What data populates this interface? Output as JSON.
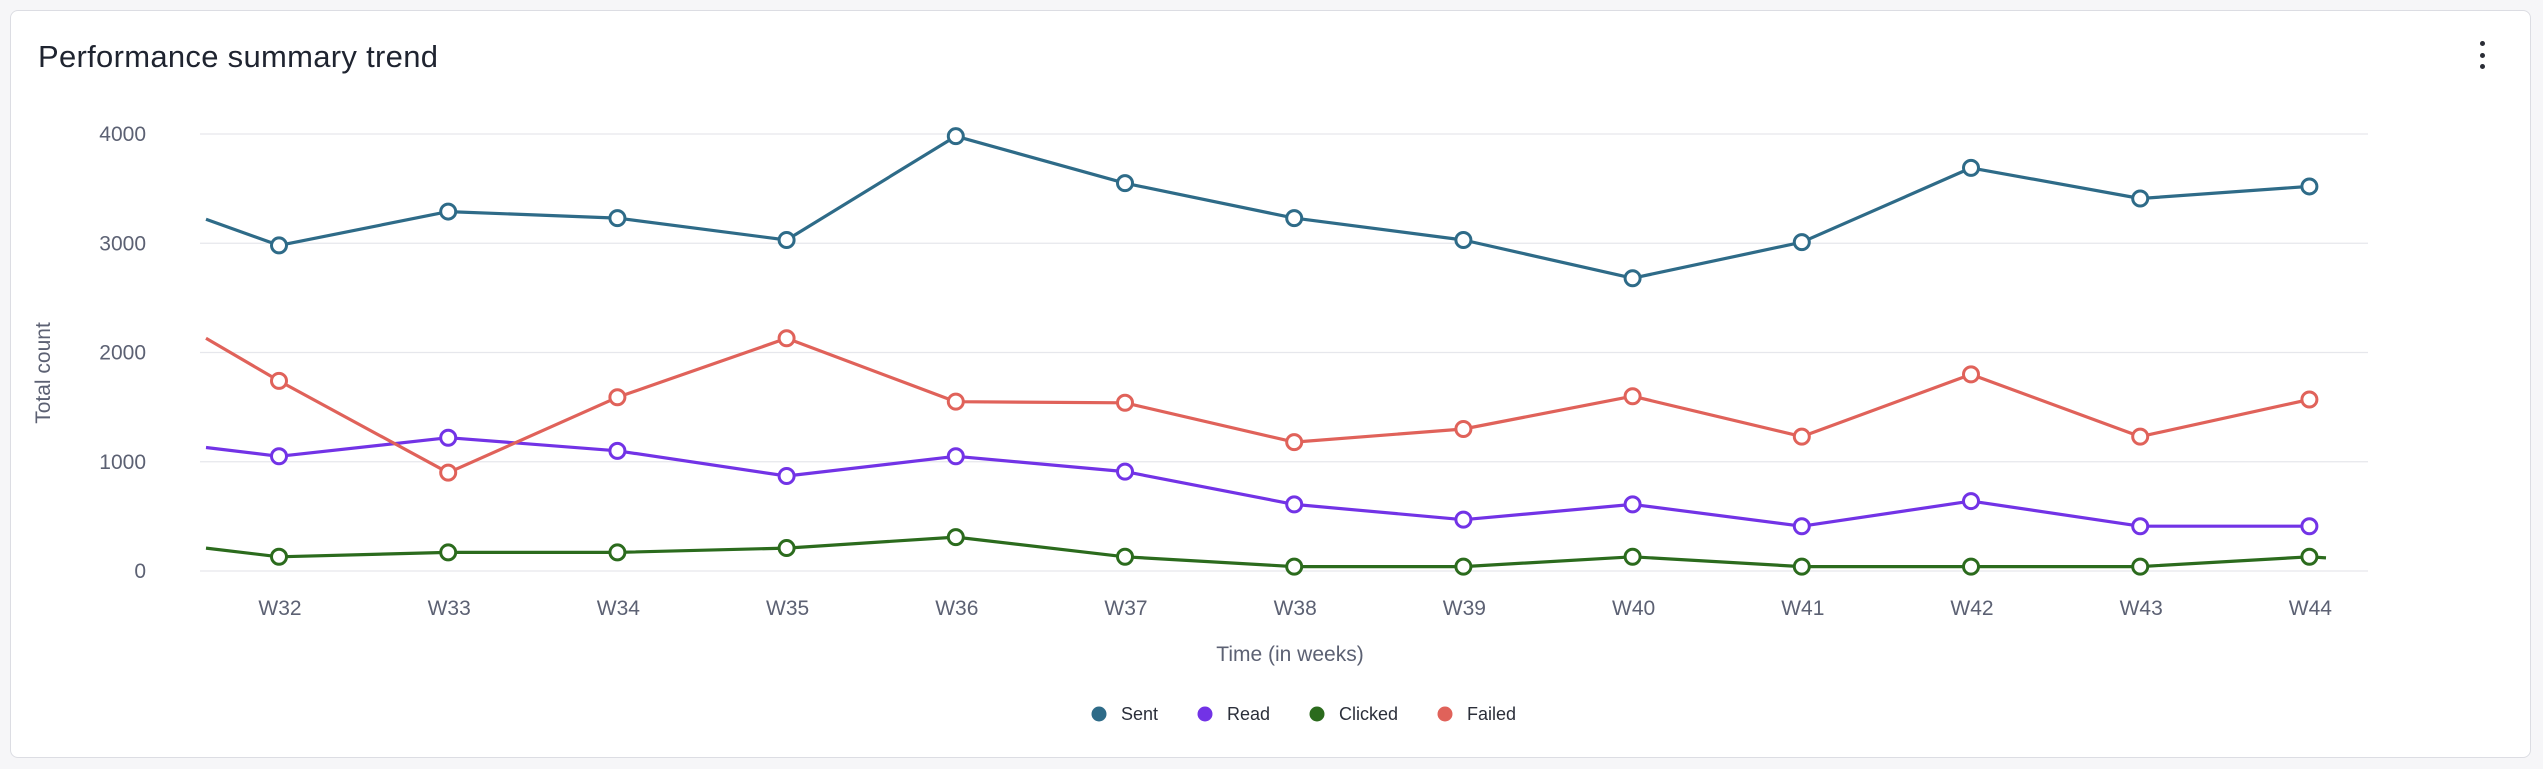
{
  "card": {
    "title": "Performance summary trend",
    "menu_icon": "more-vertical-icon"
  },
  "chart_data": {
    "type": "line",
    "title": "Performance summary trend",
    "xlabel": "Time (in weeks)",
    "ylabel": "Total count",
    "ylim": [
      0,
      4000
    ],
    "yticks": [
      0,
      1000,
      2000,
      3000,
      4000
    ],
    "grid": true,
    "legend_position": "bottom-center",
    "categories": [
      "W32",
      "W33",
      "W34",
      "W35",
      "W36",
      "W37",
      "W38",
      "W39",
      "W40",
      "W41",
      "W42",
      "W43",
      "W44"
    ],
    "series": [
      {
        "name": "Sent",
        "color": "#2e6b88",
        "start": 3220,
        "values": [
          2980,
          3290,
          3230,
          3030,
          3980,
          3550,
          3230,
          3030,
          2680,
          3010,
          3690,
          3410,
          3520
        ]
      },
      {
        "name": "Read",
        "color": "#7233e6",
        "start": 1130,
        "values": [
          1050,
          1220,
          1100,
          870,
          1050,
          910,
          610,
          470,
          610,
          410,
          640,
          410,
          410
        ]
      },
      {
        "name": "Clicked",
        "color": "#2b6b1d",
        "start": 210,
        "end": 120,
        "values": [
          130,
          170,
          170,
          210,
          310,
          130,
          40,
          40,
          130,
          40,
          40,
          40,
          130
        ]
      },
      {
        "name": "Failed",
        "color": "#e0625a",
        "start": 2130,
        "values": [
          1740,
          900,
          1590,
          2130,
          1550,
          1540,
          1180,
          1300,
          1600,
          1230,
          1800,
          1230,
          1570
        ]
      }
    ]
  }
}
